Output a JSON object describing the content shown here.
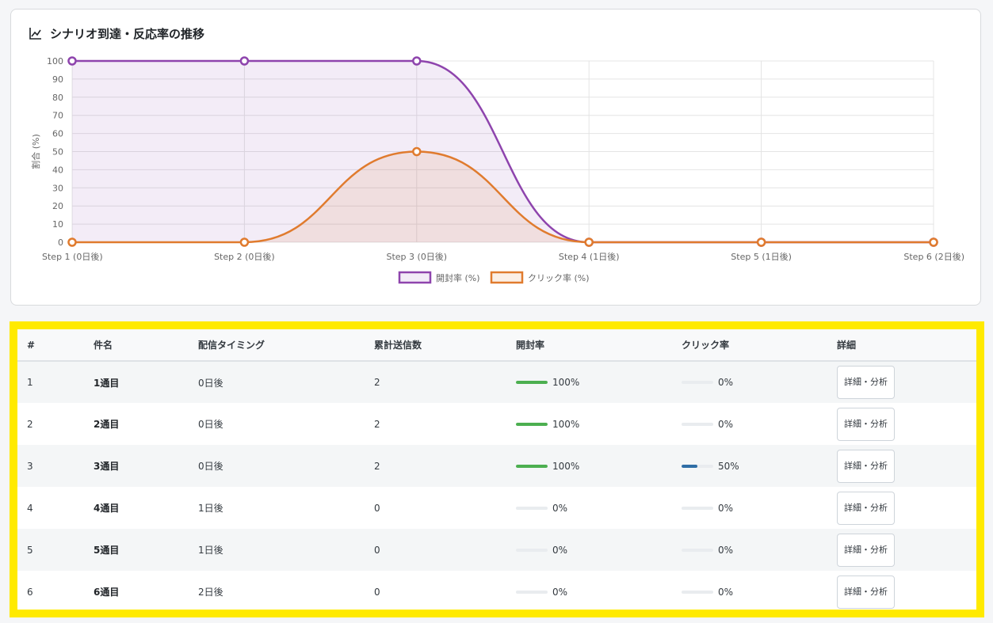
{
  "card": {
    "title": "シナリオ到達・反応率の推移",
    "icon": "line-chart-icon"
  },
  "chart_data": {
    "type": "line",
    "title": "",
    "xlabel": "",
    "ylabel": "割合 (%)",
    "categories": [
      "Step 1 (0日後)",
      "Step 2 (0日後)",
      "Step 3 (0日後)",
      "Step 4 (1日後)",
      "Step 5 (1日後)",
      "Step 6 (2日後)"
    ],
    "ylim": [
      0,
      100
    ],
    "yticks": [
      "0",
      "10",
      "20",
      "30",
      "40",
      "50",
      "60",
      "70",
      "80",
      "90",
      "100"
    ],
    "grid": true,
    "legend": "bottom",
    "series": [
      {
        "name": "開封率 (%)",
        "values": [
          100,
          100,
          100,
          0,
          0,
          0
        ],
        "color": "#8e44ad",
        "fill": "rgba(142,68,173,0.10)"
      },
      {
        "name": "クリック率 (%)",
        "values": [
          0,
          0,
          50,
          0,
          0,
          0
        ],
        "color": "#e07b2e",
        "fill": "rgba(224,123,46,0.12)"
      }
    ]
  },
  "table": {
    "headers": [
      "#",
      "件名",
      "配信タイミング",
      "累計送信数",
      "開封率",
      "クリック率",
      "詳細"
    ],
    "detail_label": "詳細・分析",
    "open_color": "#4caf50",
    "click_color": "#2f6ea6",
    "rows": [
      {
        "no": "1",
        "subject": "1通目",
        "timing": "0日後",
        "sent": "2",
        "open": 100,
        "open_text": "100%",
        "click": 0,
        "click_text": "0%"
      },
      {
        "no": "2",
        "subject": "2通目",
        "timing": "0日後",
        "sent": "2",
        "open": 100,
        "open_text": "100%",
        "click": 0,
        "click_text": "0%"
      },
      {
        "no": "3",
        "subject": "3通目",
        "timing": "0日後",
        "sent": "2",
        "open": 100,
        "open_text": "100%",
        "click": 50,
        "click_text": "50%"
      },
      {
        "no": "4",
        "subject": "4通目",
        "timing": "1日後",
        "sent": "0",
        "open": 0,
        "open_text": "0%",
        "click": 0,
        "click_text": "0%"
      },
      {
        "no": "5",
        "subject": "5通目",
        "timing": "1日後",
        "sent": "0",
        "open": 0,
        "open_text": "0%",
        "click": 0,
        "click_text": "0%"
      },
      {
        "no": "6",
        "subject": "6通目",
        "timing": "2日後",
        "sent": "0",
        "open": 0,
        "open_text": "0%",
        "click": 0,
        "click_text": "0%"
      }
    ]
  }
}
